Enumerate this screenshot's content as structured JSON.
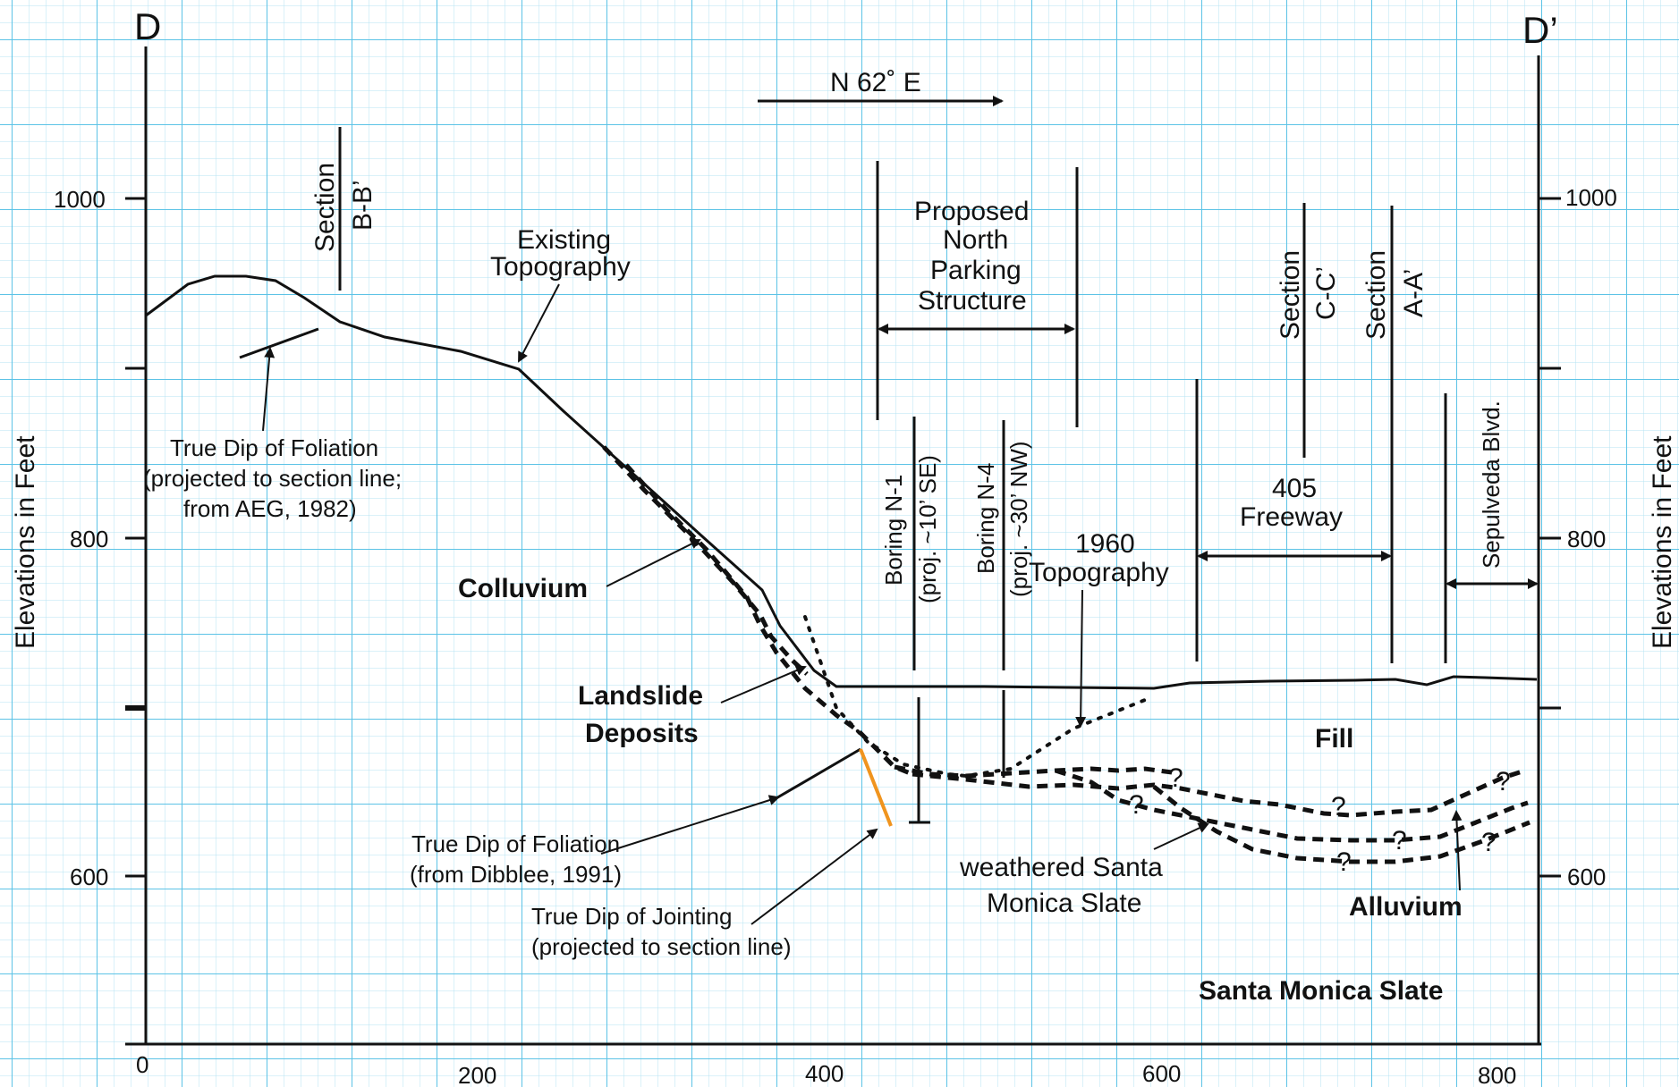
{
  "section": {
    "left_end_label": "D",
    "right_end_label": "D’",
    "bearing": "N 62˚ E"
  },
  "axes": {
    "left_title": "Elevations in Feet",
    "right_title": "Elevations in Feet",
    "y_ticks": [
      "1000",
      "800",
      "600"
    ],
    "x_ticks": [
      "0",
      "200",
      "400",
      "600",
      "800"
    ]
  },
  "labels": {
    "section_bb": [
      "Section",
      "B-B’"
    ],
    "section_cc": [
      "Section",
      "C-C’"
    ],
    "section_aa": [
      "Section",
      "A-A’"
    ],
    "existing_topo": [
      "Existing",
      "Topography"
    ],
    "proposed_structure": [
      "Proposed",
      "North",
      "Parking",
      "Structure"
    ],
    "foliation_aeg": [
      "True Dip of Foliation",
      "(projected to section line;",
      "from AEG, 1982)"
    ],
    "boring_n1": [
      "Boring N-1",
      "(proj. ~10’ SE)"
    ],
    "boring_n4": [
      "Boring N-4",
      "(proj. ~30’ NW)"
    ],
    "topo_1960": [
      "1960",
      "Topography"
    ],
    "freeway": [
      "405",
      "Freeway"
    ],
    "sepulveda": "Sepulveda Blvd.",
    "colluvium": "Colluvium",
    "landslide": [
      "Landslide",
      "Deposits"
    ],
    "fill": "Fill",
    "foliation_dibblee": [
      "True Dip of Foliation",
      "(from Dibblee, 1991)"
    ],
    "jointing": [
      "True Dip of Jointing",
      "(projected to section line)"
    ],
    "weathered_slate": [
      "weathered Santa",
      "Monica Slate"
    ],
    "alluvium": "Alluvium",
    "slate": "Santa Monica Slate",
    "uncertain_mark": "?"
  },
  "colors": {
    "grid_major": "#5cc3e6",
    "grid_minor": "#b4e3f3",
    "ink": "#111111",
    "jointing": "#f0941e"
  }
}
